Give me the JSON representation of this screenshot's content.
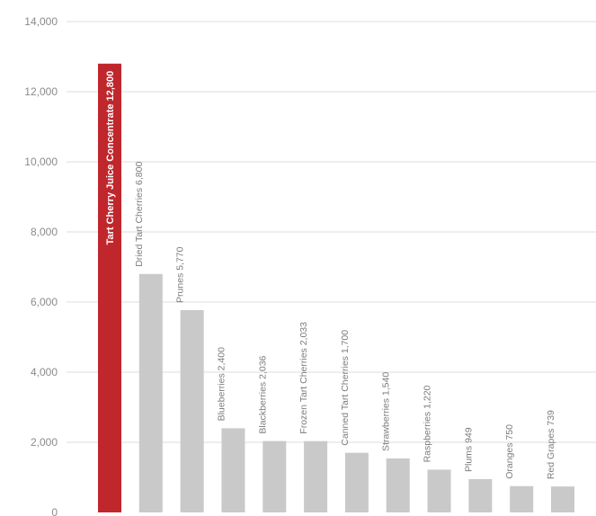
{
  "chart_data": {
    "type": "bar",
    "title": "",
    "xlabel": "",
    "ylabel": "",
    "ylim": [
      0,
      14000
    ],
    "yticks": [
      0,
      2000,
      4000,
      6000,
      8000,
      10000,
      12000,
      14000
    ],
    "ytick_labels": [
      "0",
      "2,000",
      "4,000",
      "6,000",
      "8,000",
      "10,000",
      "12,000",
      "14,000"
    ],
    "grid": true,
    "colors": {
      "highlight": "#c0272d",
      "bar": "#c9c9c9",
      "grid": "#dcdcdc"
    },
    "categories": [
      "Tart Cherry Juice Concentrate",
      "Dried Tart Cherries",
      "Prunes",
      "Blueberries",
      "Blackberries",
      "Frozen Tart Cherries",
      "Canned Tart Cherries",
      "Strawberries",
      "Raspberries",
      "Plums",
      "Oranges",
      "Red Grapes"
    ],
    "values": [
      12800,
      6800,
      5770,
      2400,
      2036,
      2033,
      1700,
      1540,
      1220,
      949,
      750,
      739
    ],
    "labels": [
      "Tart Cherry Juice Concentrate 12,800",
      "Dried Tart Cherries 6,800",
      "Prunes 5,770",
      "Blueberries 2,400",
      "Blackberries 2,036",
      "Frozen Tart Cherries 2,033",
      "Canned Tart Cherries 1,700",
      "Strawberries 1,540",
      "Raspberries 1,220",
      "Plums 949",
      "Oranges 750",
      "Red Grapes 739"
    ],
    "highlight_index": 0
  }
}
